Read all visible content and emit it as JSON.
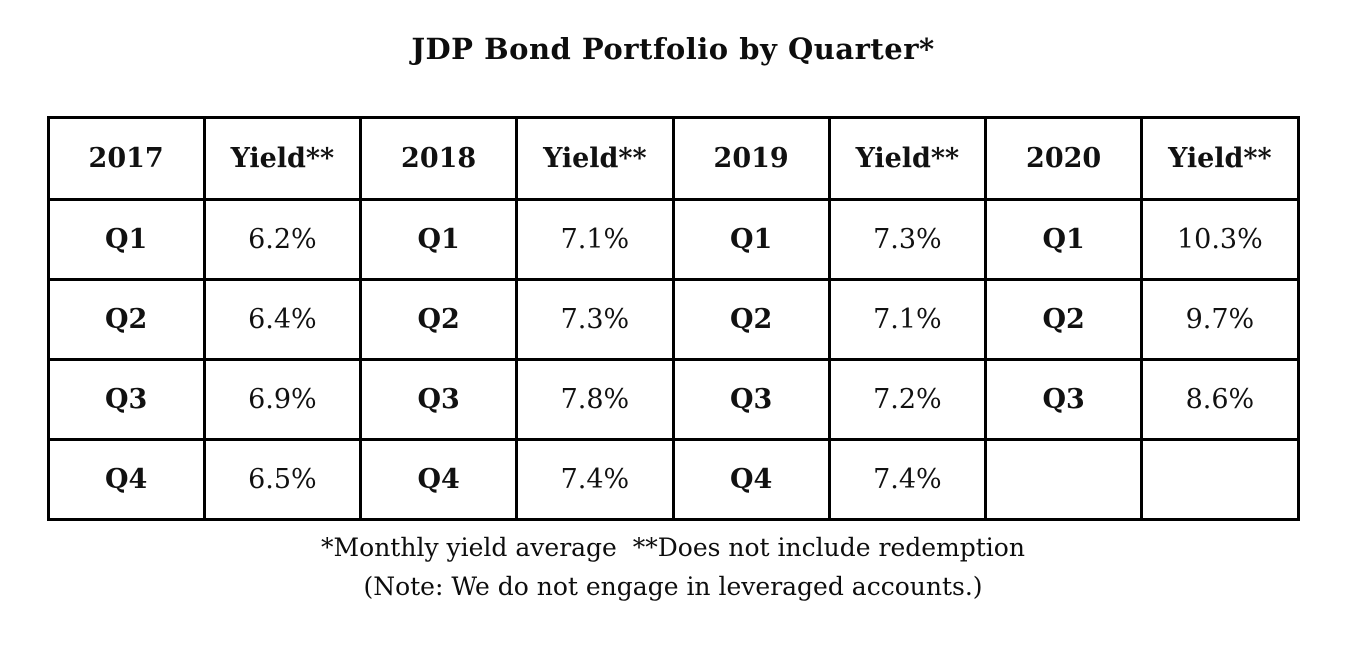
{
  "title": "JDP Bond Portfolio by Quarter*",
  "table": {
    "headers": [
      "2017",
      "Yield**",
      "2018",
      "Yield**",
      "2019",
      "Yield**",
      "2020",
      "Yield**"
    ],
    "rows": [
      [
        "Q1",
        "6.2%",
        "Q1",
        "7.1%",
        "Q1",
        "7.3%",
        "Q1",
        "10.3%"
      ],
      [
        "Q2",
        "6.4%",
        "Q2",
        "7.3%",
        "Q2",
        "7.1%",
        "Q2",
        "9.7%"
      ],
      [
        "Q3",
        "6.9%",
        "Q3",
        "7.8%",
        "Q3",
        "7.2%",
        "Q3",
        "8.6%"
      ],
      [
        "Q4",
        "6.5%",
        "Q4",
        "7.4%",
        "Q4",
        "7.4%",
        "",
        ""
      ]
    ]
  },
  "footnotes": {
    "line1": "*Monthly yield average  **Does not include redemption",
    "line2": "(Note: We do not engage in leveraged accounts.)"
  },
  "colors": {
    "text": "#111111",
    "border": "#000000",
    "background": "#ffffff"
  },
  "chart_data": {
    "type": "table",
    "title": "JDP Bond Portfolio by Quarter*",
    "categories": [
      "Q1",
      "Q2",
      "Q3",
      "Q4"
    ],
    "series": [
      {
        "name": "2017",
        "yields_pct": [
          6.2,
          6.4,
          6.9,
          6.5
        ]
      },
      {
        "name": "2018",
        "yields_pct": [
          7.1,
          7.3,
          7.8,
          7.4
        ]
      },
      {
        "name": "2019",
        "yields_pct": [
          7.3,
          7.1,
          7.2,
          7.4
        ]
      },
      {
        "name": "2020",
        "yields_pct": [
          10.3,
          9.7,
          8.6,
          null
        ]
      }
    ],
    "notes": [
      "*Monthly yield average",
      "**Does not include redemption",
      "(Note: We do not engage in leveraged accounts.)"
    ]
  }
}
